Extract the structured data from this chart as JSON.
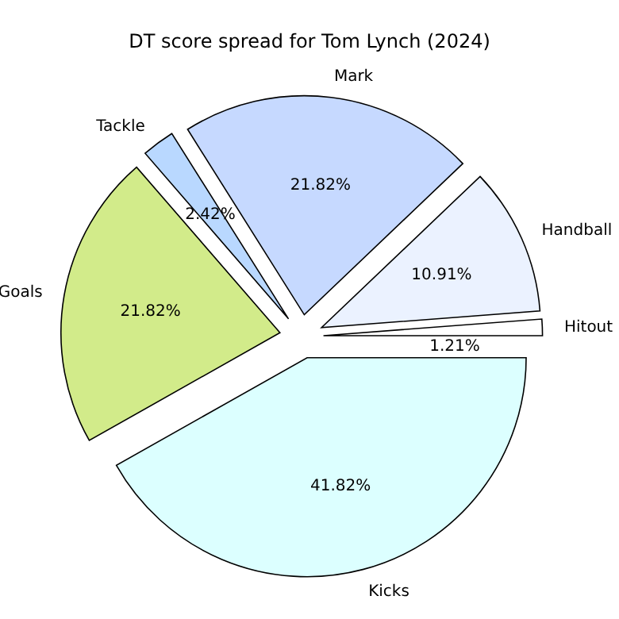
{
  "chart_data": {
    "type": "pie",
    "title": "DT score spread for Tom Lynch (2024)",
    "categories": [
      "Hitout",
      "Handball",
      "Mark",
      "Tackle",
      "Goals",
      "Kicks"
    ],
    "values": [
      1.21,
      10.91,
      21.82,
      2.42,
      21.82,
      41.82
    ],
    "colors": [
      "#ffffff",
      "#ebf2ff",
      "#c6d9ff",
      "#b9d8ff",
      "#d2eb8a",
      "#dcffff"
    ],
    "value_labels": [
      "1.21%",
      "10.91%",
      "21.82%",
      "2.42%",
      "21.82%",
      "41.82%"
    ]
  }
}
